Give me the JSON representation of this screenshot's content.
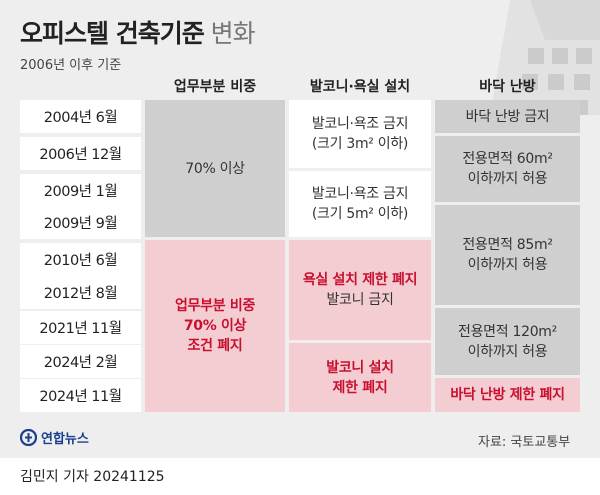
{
  "title": {
    "strong": "오피스텔 건축기준",
    "light": "변화"
  },
  "subtitle": "2006년 이후 기준",
  "columns": [
    "업무부분 비중",
    "발코니·욕실 설치",
    "바닥 난방"
  ],
  "dates": [
    "2004년 6월",
    "2006년 12월",
    "2009년 1월",
    "2009년 9월",
    "2010년 6월",
    "2012년 8월",
    "2021년 11월",
    "2024년 2월",
    "2024년 11월"
  ],
  "business": {
    "before": "70% 이상",
    "after": [
      "업무부분 비중",
      "70% 이상",
      "조건 폐지"
    ]
  },
  "balcony": {
    "period1": [
      "발코니·욕조 금지",
      "(크기 3m² 이하)"
    ],
    "period2": [
      "발코니·욕조 금지",
      "(크기 5m² 이하)"
    ],
    "period3": {
      "highlight": "욕실 설치 제한 폐지",
      "normal": "발코니 금지"
    },
    "period4": [
      "발코니 설치",
      "제한 폐지"
    ]
  },
  "heating": {
    "period1": "바닥 난방 금지",
    "period2": [
      "전용면적 60m²",
      "이하까지 허용"
    ],
    "period3": [
      "전용면적 85m²",
      "이하까지 허용"
    ],
    "period4": [
      "전용면적 120m²",
      "이하까지 허용"
    ],
    "period5": "바닥 난방 제한 폐지"
  },
  "logo": "연합뉴스",
  "source": "자료: 국토교통부",
  "credit": "김민지 기자  20241125",
  "colors": {
    "gray": "#cfcfcf",
    "pink": "#f4cdd2",
    "red": "#c8102e",
    "background": "#eeeeee"
  }
}
